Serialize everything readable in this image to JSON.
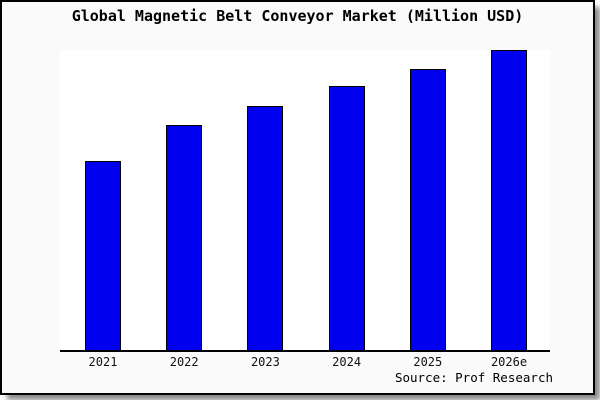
{
  "chart_data": {
    "type": "bar",
    "title": "Global Magnetic Belt Conveyor Market (Million USD)",
    "categories": [
      "2021",
      "2022",
      "2023",
      "2024",
      "2025",
      "2026e"
    ],
    "values": [
      63,
      75,
      81.5,
      88,
      93.5,
      100
    ],
    "value_scale": "percent-of-max; y-axis has no ticks or labels in the image",
    "xlabel": "",
    "ylabel": "",
    "ylim": [
      0,
      100
    ],
    "gridlines": false,
    "legend_position": "none",
    "bar_color": "#0000ee",
    "bar_border_color": "#000000",
    "plot_background": "#ffffff",
    "canvas_background": "#fafafa"
  },
  "footer": {
    "source": "Source: Prof Research"
  }
}
